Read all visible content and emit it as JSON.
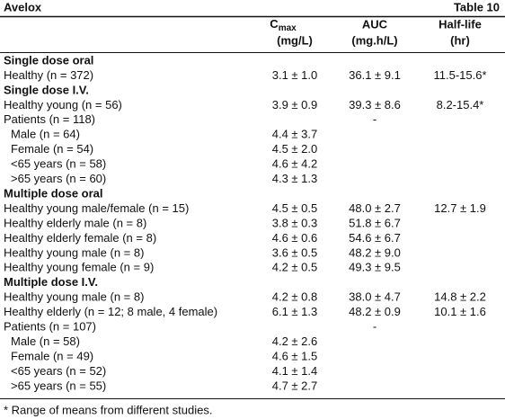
{
  "header": {
    "title": "Avelox",
    "table_number": "Table 10"
  },
  "columns": {
    "cmax": {
      "main": "C",
      "sub": "max",
      "unit": "(mg/L)"
    },
    "auc": {
      "main": "AUC",
      "unit": "(mg.h/L)"
    },
    "half_life": {
      "main": "Half-life",
      "unit": "(hr)"
    }
  },
  "rows": [
    {
      "heading": "Single dose oral"
    },
    {
      "label": "Healthy (n = 372)",
      "cmax": "3.1 ± 1.0",
      "auc": "36.1 ± 9.1",
      "half_life": "11.5-15.6*"
    },
    {
      "heading": "Single dose I.V."
    },
    {
      "label": "Healthy young (n = 56)",
      "cmax": "3.9 ± 0.9",
      "auc": "39.3 ± 8.6",
      "half_life": "8.2-15.4*"
    },
    {
      "label": "Patients (n = 118)",
      "auc": "-"
    },
    {
      "label": "Male (n = 64)",
      "cmax": "4.4 ± 3.7",
      "indent": true
    },
    {
      "label": "Female (n = 54)",
      "cmax": "4.5 ± 2.0",
      "indent": true
    },
    {
      "label": "<65 years (n = 58)",
      "cmax": "4.6 ± 4.2",
      "indent": true
    },
    {
      "label": ">65 years (n = 60)",
      "cmax": "4.3 ± 1.3",
      "indent": true
    },
    {
      "heading": "Multiple dose oral"
    },
    {
      "label": "Healthy young male/female (n = 15)",
      "cmax": "4.5 ± 0.5",
      "auc": "48.0 ± 2.7",
      "half_life": "12.7 ± 1.9"
    },
    {
      "label": "Healthy elderly male (n = 8)",
      "cmax": "3.8 ± 0.3",
      "auc": "51.8 ± 6.7"
    },
    {
      "label": "Healthy elderly female (n = 8)",
      "cmax": "4.6 ± 0.6",
      "auc": "54.6 ± 6.7"
    },
    {
      "label": "Healthy young male (n = 8)",
      "cmax": "3.6 ± 0.5",
      "auc": "48.2 ± 9.0"
    },
    {
      "label": "Healthy young female (n = 9)",
      "cmax": "4.2 ± 0.5",
      "auc": "49.3 ± 9.5"
    },
    {
      "heading": "Multiple dose I.V."
    },
    {
      "label": "Healthy young male (n = 8)",
      "cmax": "4.2 ± 0.8",
      "auc": "38.0 ± 4.7",
      "half_life": "14.8 ± 2.2"
    },
    {
      "label": "Healthy elderly (n = 12; 8 male, 4 female)",
      "cmax": "6.1 ± 1.3",
      "auc": "48.2 ± 0.9",
      "half_life": "10.1 ± 1.6"
    },
    {
      "label": "Patients (n = 107)",
      "auc": "-"
    },
    {
      "label": "Male (n = 58)",
      "cmax": "4.2 ± 2.6",
      "indent": true
    },
    {
      "label": "Female (n = 49)",
      "cmax": "4.6 ± 1.5",
      "indent": true
    },
    {
      "label": "<65 years (n = 52)",
      "cmax": "4.1 ± 1.4",
      "indent": true
    },
    {
      "label": ">65 years (n = 55)",
      "cmax": "4.7 ± 2.7",
      "indent": true
    }
  ],
  "footnote": "* Range of means from different studies."
}
